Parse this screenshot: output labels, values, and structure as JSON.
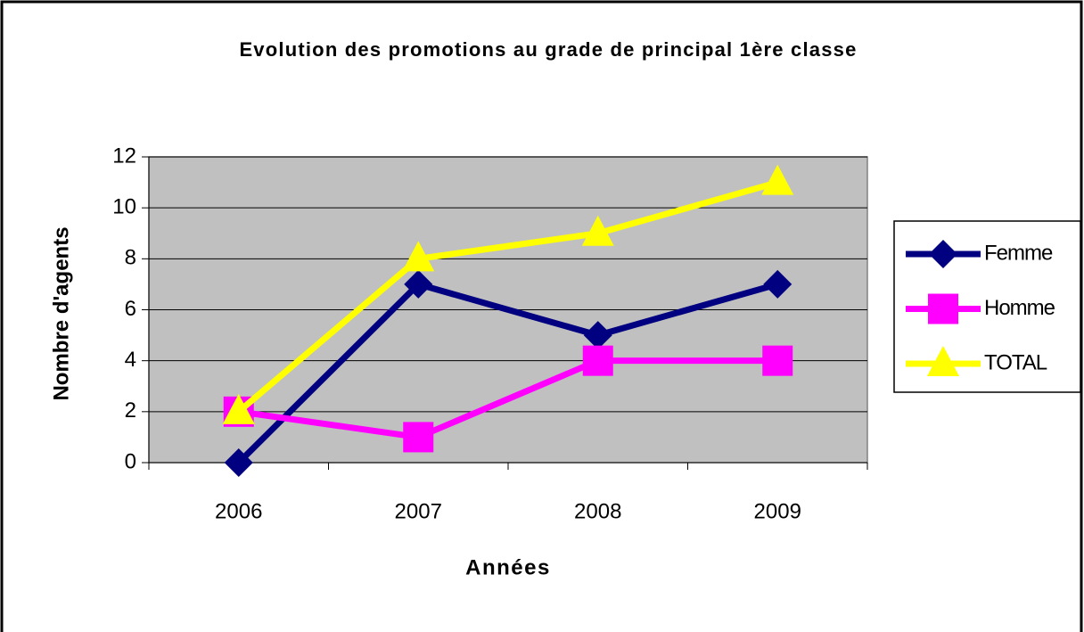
{
  "chart_data": {
    "type": "line",
    "title": "Evolution des promotions au grade de principal 1ère classe",
    "x_label": "Années",
    "y_label": "Nombre d'agents",
    "categories": [
      "2006",
      "2007",
      "2008",
      "2009"
    ],
    "series": [
      {
        "name": "Femme",
        "color": "#000080",
        "marker": "diamond",
        "values": [
          0,
          7,
          5,
          7
        ]
      },
      {
        "name": "Homme",
        "color": "#ff00ff",
        "marker": "square",
        "values": [
          2,
          1,
          4,
          4
        ]
      },
      {
        "name": "TOTAL",
        "color": "#ffff00",
        "marker": "triangle",
        "values": [
          2,
          8,
          9,
          11
        ]
      }
    ],
    "ylim": [
      0,
      12
    ],
    "yticks": [
      0,
      2,
      4,
      6,
      8,
      10,
      12
    ],
    "grid": true,
    "legend": "right",
    "plot_background": "#c0c0c0"
  }
}
